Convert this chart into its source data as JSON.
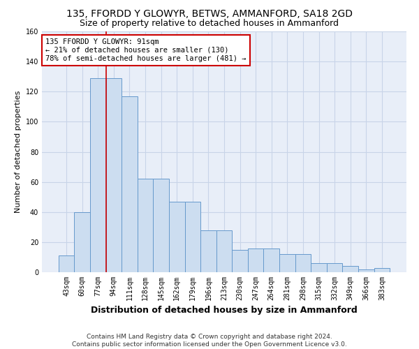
{
  "title": "135, FFORDD Y GLOWYR, BETWS, AMMANFORD, SA18 2GD",
  "subtitle": "Size of property relative to detached houses in Ammanford",
  "xlabel": "Distribution of detached houses by size in Ammanford",
  "ylabel": "Number of detached properties",
  "bar_color": "#ccddf0",
  "bar_edge_color": "#6699cc",
  "grid_color": "#c8d4e8",
  "background_color": "#e8eef8",
  "categories": [
    "43sqm",
    "60sqm",
    "77sqm",
    "94sqm",
    "111sqm",
    "128sqm",
    "145sqm",
    "162sqm",
    "179sqm",
    "196sqm",
    "213sqm",
    "230sqm",
    "247sqm",
    "264sqm",
    "281sqm",
    "298sqm",
    "315sqm",
    "332sqm",
    "349sqm",
    "366sqm",
    "383sqm"
  ],
  "bar_heights": [
    11,
    40,
    129,
    129,
    117,
    62,
    62,
    47,
    47,
    28,
    28,
    15,
    16,
    16,
    12,
    12,
    6,
    6,
    4,
    2,
    3
  ],
  "ylim": [
    0,
    160
  ],
  "yticks": [
    0,
    20,
    40,
    60,
    80,
    100,
    120,
    140,
    160
  ],
  "annotation_text": "135 FFORDD Y GLOWYR: 91sqm\n← 21% of detached houses are smaller (130)\n78% of semi-detached houses are larger (481) →",
  "vline_color": "#cc0000",
  "annotation_box_facecolor": "white",
  "annotation_box_edgecolor": "#cc0000",
  "footer_line1": "Contains HM Land Registry data © Crown copyright and database right 2024.",
  "footer_line2": "Contains public sector information licensed under the Open Government Licence v3.0.",
  "title_fontsize": 10,
  "subtitle_fontsize": 9,
  "ylabel_fontsize": 8,
  "xlabel_fontsize": 9,
  "tick_fontsize": 7,
  "annotation_fontsize": 7.5,
  "footer_fontsize": 6.5
}
